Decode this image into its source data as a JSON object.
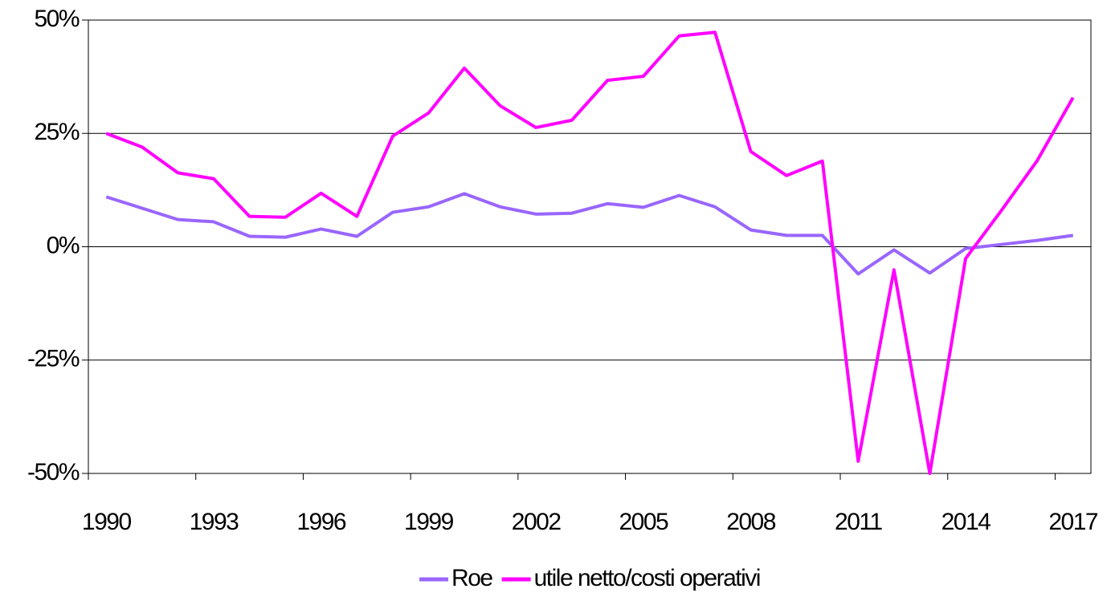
{
  "chart_data": {
    "type": "line",
    "categories": [
      "1990",
      null,
      null,
      "1993",
      null,
      null,
      "1996",
      null,
      null,
      "1999",
      null,
      null,
      "2002",
      null,
      null,
      "2005",
      null,
      null,
      "2008",
      null,
      null,
      "2011",
      null,
      null,
      "2014",
      null,
      null,
      "2017"
    ],
    "series": [
      {
        "name": "Roe",
        "color": "#9966ff",
        "values": [
          11,
          8.5,
          6,
          5.5,
          2.3,
          2.1,
          3.9,
          2.3,
          7.6,
          8.8,
          11.7,
          8.8,
          7.2,
          7.4,
          9.5,
          8.7,
          11.3,
          8.8,
          3.7,
          2.5,
          2.5,
          -6,
          -0.7,
          -5.8,
          -0.4,
          0.5,
          1.4,
          2.5
        ]
      },
      {
        "name": "utile netto/costi operativi",
        "color": "#ff00ff",
        "values": [
          25,
          22,
          16.3,
          15,
          6.7,
          6.5,
          11.8,
          6.7,
          24.4,
          29.5,
          39.4,
          31.1,
          26.3,
          27.9,
          36.7,
          37.6,
          46.5,
          47.3,
          21,
          15.7,
          18.9,
          -47.3,
          -5.1,
          -50,
          -2.6,
          8,
          19,
          32.9
        ]
      }
    ],
    "ylim": [
      -50,
      50
    ],
    "yticks": [
      {
        "value": -50,
        "label": "-50%"
      },
      {
        "value": -25,
        "label": "-25%"
      },
      {
        "value": 0,
        "label": "0%"
      },
      {
        "value": 25,
        "label": "25%"
      },
      {
        "value": 50,
        "label": "50%"
      }
    ],
    "grid": true,
    "legend": "bottom"
  }
}
